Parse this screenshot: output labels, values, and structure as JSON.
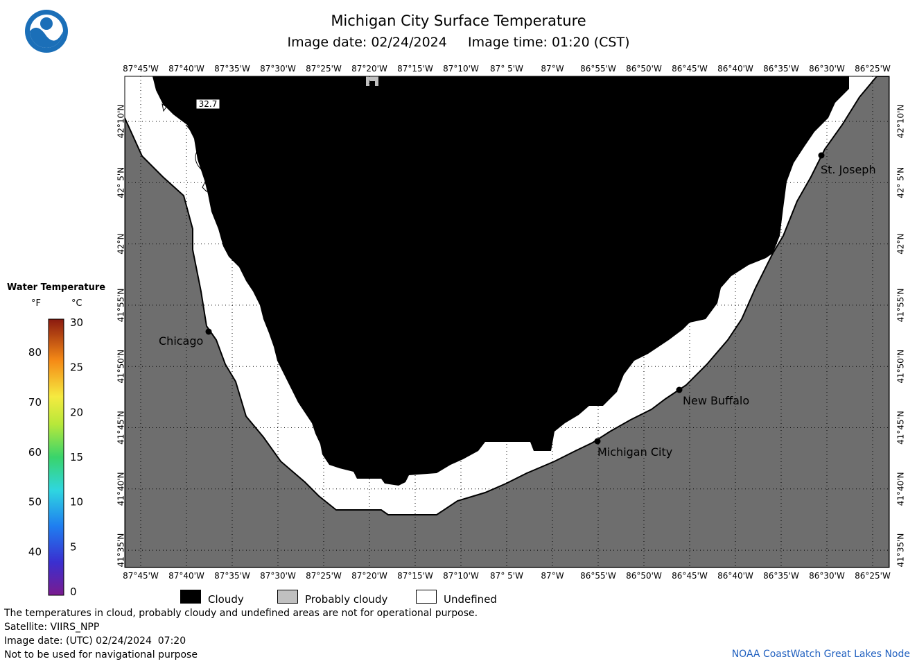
{
  "title": "Michigan City Surface Temperature",
  "image_date_line": "Image date: 02/24/2024     Image time: 01:20 (CST)",
  "longitude_labels": [
    "87°45'W",
    "87°40'W",
    "87°35'W",
    "87°30'W",
    "87°25'W",
    "87°20'W",
    "87°15'W",
    "87°10'W",
    "87° 5'W",
    "87°W",
    "86°55'W",
    "86°50'W",
    "86°45'W",
    "86°40'W",
    "86°35'W",
    "86°30'W",
    "86°25'W"
  ],
  "latitude_labels": [
    "42°10'N",
    "42° 5'N",
    "42°N",
    "41°55'N",
    "41°50'N",
    "41°45'N",
    "41°40'N",
    "41°35'N"
  ],
  "cities": [
    {
      "name": "St. Joseph"
    },
    {
      "name": "Chicago"
    },
    {
      "name": "New Buffalo"
    },
    {
      "name": "Michigan City"
    }
  ],
  "contour_label": "32.7",
  "legend": {
    "title": "Water Temperature",
    "unit_f": "°F",
    "unit_c": "°C",
    "fahrenheit_ticks": [
      "80",
      "70",
      "60",
      "50",
      "40"
    ],
    "celsius_ticks": [
      "30",
      "25",
      "20",
      "15",
      "10",
      "5",
      "0"
    ],
    "range_c": [
      0,
      30
    ]
  },
  "key": [
    {
      "label": "Cloudy",
      "color": "#000000"
    },
    {
      "label": "Probably cloudy",
      "color": "#c0c0c0"
    },
    {
      "label": "Undefined",
      "color": "#ffffff"
    }
  ],
  "footer": {
    "line1": "The temperatures in cloud, probably cloudy and undefined areas are not for operational purpose.",
    "line2": "Satellite: VIIRS_NPP",
    "line3": "Image date: (UTC) 02/24/2024  07:20",
    "line4": "Not to be used for navigational purpose",
    "credit": "NOAA CoastWatch Great Lakes Node"
  },
  "colors": {
    "land": "#6e6e6e",
    "cloud": "#000000",
    "undefined": "#ffffff",
    "probably_cloudy": "#c0c0c0",
    "credit": "#1f5fbf"
  }
}
